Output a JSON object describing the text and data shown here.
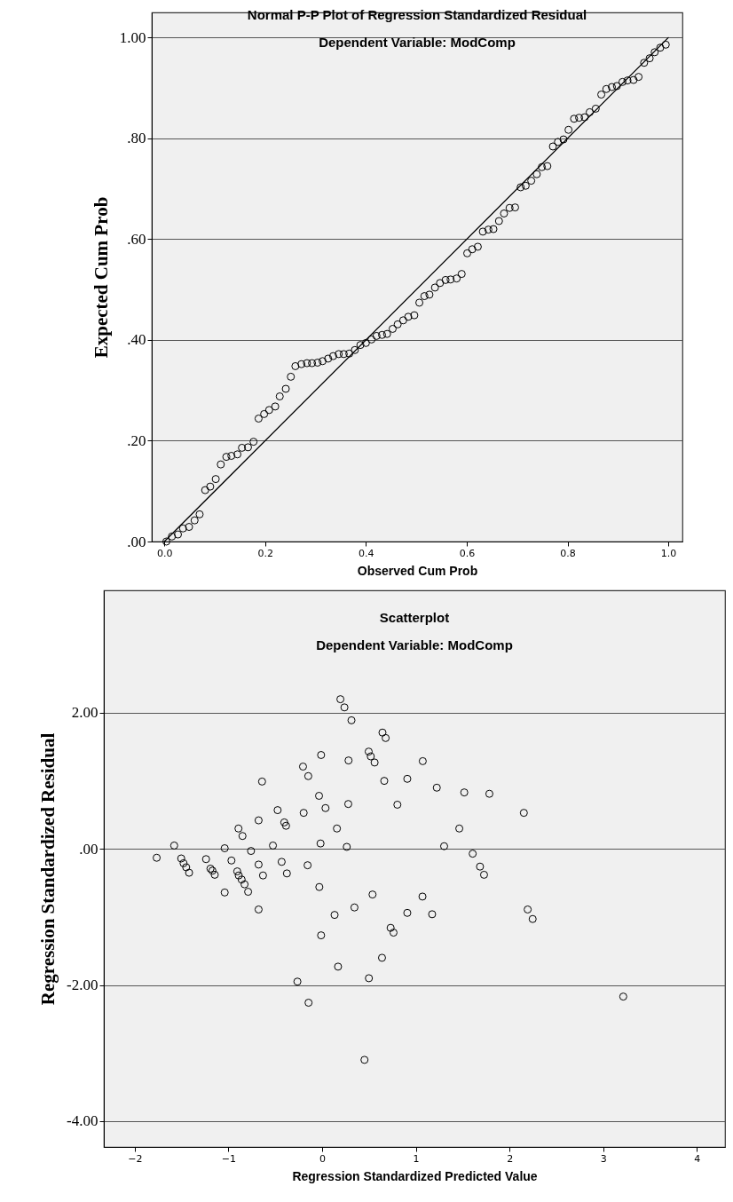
{
  "chart_data": [
    {
      "type": "scatter",
      "title": "Normal P-P Plot of Regression Standardized Residual",
      "subtitle": "Dependent Variable: ModComp",
      "xlabel": "Observed Cum Prob",
      "ylabel": "Expected Cum Prob",
      "xlim": [
        -0.025,
        1.028
      ],
      "ylim": [
        0,
        1.05
      ],
      "xticks": [
        {
          "value": 0,
          "label": "0.0"
        },
        {
          "value": 0.2,
          "label": "0.2"
        },
        {
          "value": 0.4,
          "label": "0.4"
        },
        {
          "value": 0.6,
          "label": "0.6"
        },
        {
          "value": 0.8,
          "label": "0.8"
        },
        {
          "value": 1,
          "label": "1.0"
        }
      ],
      "yticks": [
        {
          "value": 0,
          "label": ".00"
        },
        {
          "value": 0.2,
          "label": ".20"
        },
        {
          "value": 0.4,
          "label": ".40"
        },
        {
          "value": 0.6,
          "label": ".60"
        },
        {
          "value": 0.8,
          "label": ".80"
        },
        {
          "value": 1,
          "label": "1.00"
        }
      ],
      "grid": "y",
      "marker": "circle",
      "series": [
        {
          "color": "#000000",
          "x": [
            0.004,
            0.015,
            0.027,
            0.037,
            0.049,
            0.06,
            0.07,
            0.081,
            0.091,
            0.102,
            0.112,
            0.123,
            0.133,
            0.145,
            0.154,
            0.166,
            0.177,
            0.187,
            0.198,
            0.208,
            0.22,
            0.229,
            0.241,
            0.251,
            0.26,
            0.272,
            0.283,
            0.293,
            0.304,
            0.314,
            0.325,
            0.335,
            0.346,
            0.356,
            0.367,
            0.378,
            0.389,
            0.4,
            0.411,
            0.421,
            0.432,
            0.442,
            0.453,
            0.463,
            0.474,
            0.484,
            0.496,
            0.506,
            0.516,
            0.526,
            0.537,
            0.547,
            0.558,
            0.568,
            0.58,
            0.59,
            0.601,
            0.611,
            0.622,
            0.632,
            0.643,
            0.653,
            0.664,
            0.674,
            0.685,
            0.696,
            0.707,
            0.717,
            0.728,
            0.739,
            0.749,
            0.76,
            0.771,
            0.781,
            0.792,
            0.802,
            0.813,
            0.823,
            0.834,
            0.844,
            0.856,
            0.867,
            0.877,
            0.888,
            0.898,
            0.909,
            0.919,
            0.931,
            0.941,
            0.952,
            0.963,
            0.973,
            0.984,
            0.995
          ],
          "values": [
            0,
            0.01,
            0.014,
            0.026,
            0.029,
            0.042,
            0.054,
            0.102,
            0.109,
            0.124,
            0.153,
            0.168,
            0.17,
            0.173,
            0.186,
            0.187,
            0.198,
            0.244,
            0.253,
            0.261,
            0.268,
            0.288,
            0.303,
            0.327,
            0.348,
            0.352,
            0.354,
            0.354,
            0.355,
            0.358,
            0.363,
            0.368,
            0.372,
            0.372,
            0.373,
            0.38,
            0.39,
            0.394,
            0.401,
            0.408,
            0.41,
            0.412,
            0.422,
            0.431,
            0.439,
            0.446,
            0.449,
            0.474,
            0.487,
            0.49,
            0.504,
            0.513,
            0.519,
            0.52,
            0.522,
            0.531,
            0.572,
            0.58,
            0.585,
            0.615,
            0.619,
            0.62,
            0.636,
            0.651,
            0.662,
            0.663,
            0.703,
            0.706,
            0.716,
            0.729,
            0.743,
            0.745,
            0.784,
            0.793,
            0.798,
            0.817,
            0.839,
            0.841,
            0.842,
            0.852,
            0.859,
            0.887,
            0.898,
            0.902,
            0.904,
            0.912,
            0.915,
            0.916,
            0.922,
            0.95,
            0.959,
            0.971,
            0.98,
            0.986
          ]
        },
        {
          "type": "line",
          "marker": "none",
          "color": "#000000",
          "x": [
            0,
            1
          ],
          "values": [
            0,
            1
          ]
        }
      ]
    },
    {
      "type": "scatter",
      "title": "Scatterplot",
      "subtitle": "Dependent Variable: ModComp",
      "xlabel": "Regression Standardized Predicted Value",
      "ylabel": "Regression Standardized Residual",
      "xlim": [
        -2.33,
        4.3
      ],
      "ylim": [
        -4.38,
        3.8
      ],
      "xticks": [
        -2,
        -1,
        0,
        1,
        2,
        3,
        4
      ],
      "yticks": [
        {
          "value": -4,
          "label": "-4.00"
        },
        {
          "value": -2,
          "label": "-2.00"
        },
        {
          "value": 0,
          "label": ".00"
        },
        {
          "value": 2,
          "label": "2.00"
        }
      ],
      "grid": "y",
      "marker": "circle",
      "series": [
        {
          "color": "#000000",
          "x": [
            0.195,
            0.238,
            0.313,
            0.644,
            0.678,
            -0.011,
            0.282,
            0.497,
            0.519,
            0.56,
            0.909,
            0.663,
            -0.204,
            -0.148,
            -0.641,
            -0.033,
            0.036,
            0.279,
            0.803,
            -0.475,
            -0.197,
            -0.678,
            -0.404,
            -0.385,
            0.158,
            -0.893,
            -0.85,
            -1.579,
            -1.04,
            -0.525,
            -0.017,
            0.263,
            -0.759,
            -1.766,
            -1.504,
            -1.479,
            -1.451,
            -1.42,
            -1.239,
            -1.192,
            -1.171,
            -1.146,
            -0.968,
            -0.906,
            -0.89,
            -0.859,
            -0.828,
            -0.79,
            -1.04,
            -0.678,
            -0.631,
            -0.432,
            -0.376,
            -0.155,
            -0.03,
            -0.678,
            0.133,
            0.345,
            0.538,
            -0.011,
            0.731,
            0.762,
            0.909,
            1.074,
            1.224,
            1.517,
            1.785,
            2.153,
            1.464,
            1.302,
            1.607,
            1.685,
            1.728,
            1.071,
            1.174,
            2.194,
            2.247,
            0.639,
            0.17,
            -0.264,
            0.499,
            -0.145,
            3.214,
            0.452
          ],
          "values": [
            2.2,
            2.08,
            1.89,
            1.71,
            1.63,
            1.38,
            1.3,
            1.43,
            1.36,
            1.27,
            1.03,
            1.0,
            1.21,
            1.07,
            0.99,
            0.78,
            0.6,
            0.66,
            0.65,
            0.57,
            0.53,
            0.42,
            0.39,
            0.34,
            0.3,
            0.3,
            0.19,
            0.05,
            0.01,
            0.05,
            0.08,
            0.03,
            -0.03,
            -0.13,
            -0.14,
            -0.21,
            -0.27,
            -0.35,
            -0.15,
            -0.29,
            -0.32,
            -0.38,
            -0.17,
            -0.33,
            -0.39,
            -0.45,
            -0.52,
            -0.63,
            -0.64,
            -0.23,
            -0.39,
            -0.19,
            -0.36,
            -0.24,
            -0.56,
            -0.89,
            -0.97,
            -0.86,
            -0.67,
            -1.27,
            -1.16,
            -1.23,
            -0.94,
            1.29,
            0.9,
            0.83,
            0.81,
            0.53,
            0.3,
            0.04,
            -0.07,
            -0.26,
            -0.38,
            -0.7,
            -0.96,
            -0.89,
            -1.03,
            -1.6,
            -1.73,
            -1.95,
            -1.9,
            -2.26,
            -2.17,
            -3.1
          ]
        }
      ]
    }
  ]
}
